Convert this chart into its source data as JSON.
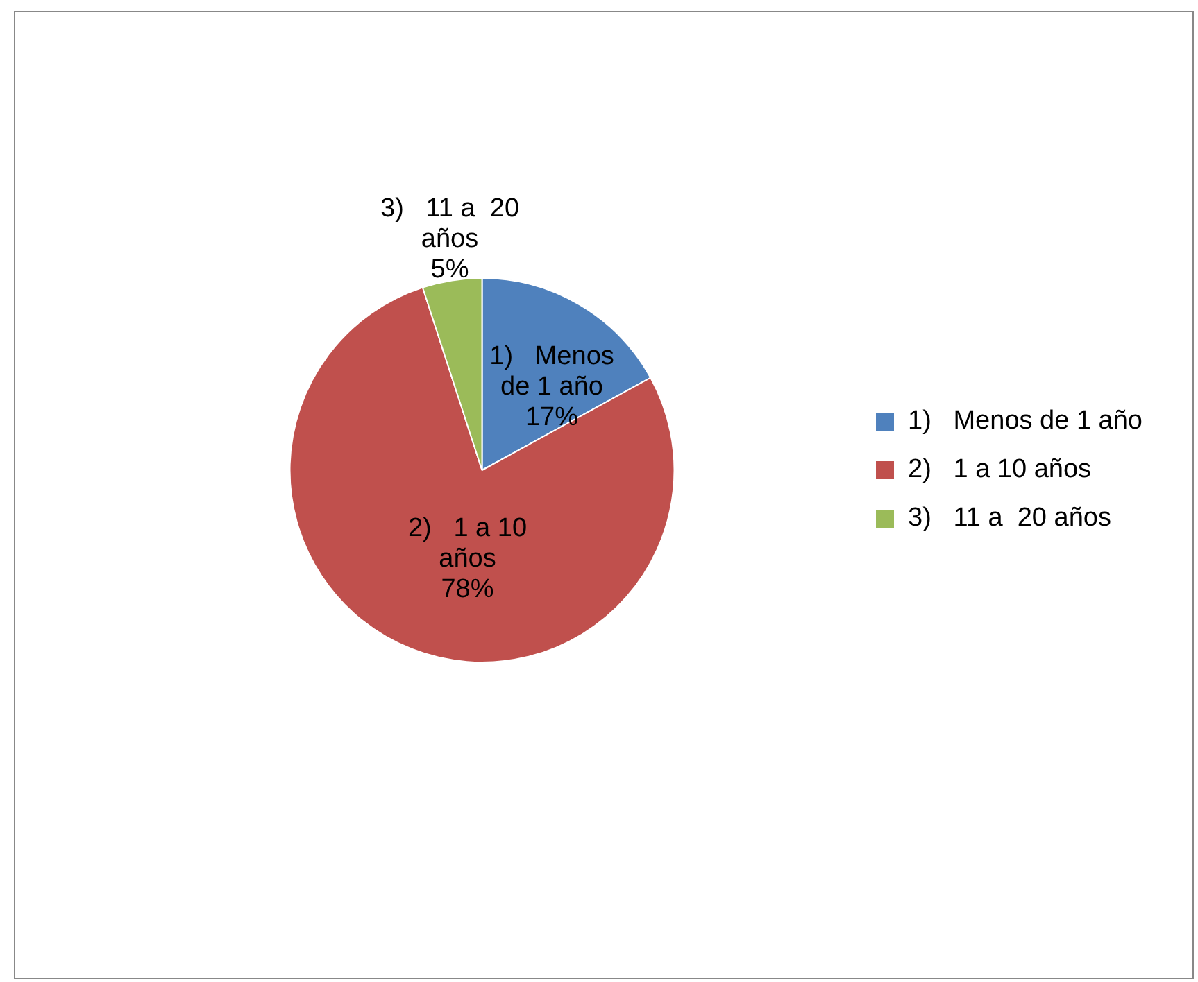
{
  "chart_data": {
    "type": "pie",
    "categories": [
      "1)   Menos de 1 año",
      "2)   1 a 10 años",
      "3)   11 a  20 años"
    ],
    "values": [
      17,
      78,
      5
    ],
    "value_labels": [
      "17%",
      "78%",
      "5%"
    ],
    "colors": [
      "#4f81bd",
      "#c0504d",
      "#9bbb59"
    ],
    "legend": "right"
  }
}
